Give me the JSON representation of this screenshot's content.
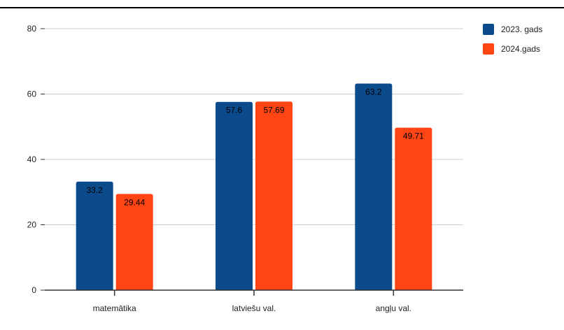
{
  "chart_data": {
    "type": "bar",
    "title": "",
    "xlabel": "",
    "ylabel": "",
    "categories": [
      "matemātika",
      "latviešu val.",
      "angļu val."
    ],
    "series": [
      {
        "name": "2023. gads",
        "color": "#0b4a8b",
        "values": [
          33.2,
          57.6,
          63.2
        ],
        "labels": [
          "33.2",
          "57.6",
          "63.2"
        ]
      },
      {
        "name": "2024.gads",
        "color": "#ff4514",
        "values": [
          29.44,
          57.69,
          49.71
        ],
        "labels": [
          "29.44",
          "57.69",
          "49.71"
        ]
      }
    ],
    "ylim": [
      0,
      80
    ],
    "yticks": [
      "0",
      "20",
      "40",
      "60",
      "80"
    ],
    "grid": true,
    "legend_position": "top-right"
  }
}
